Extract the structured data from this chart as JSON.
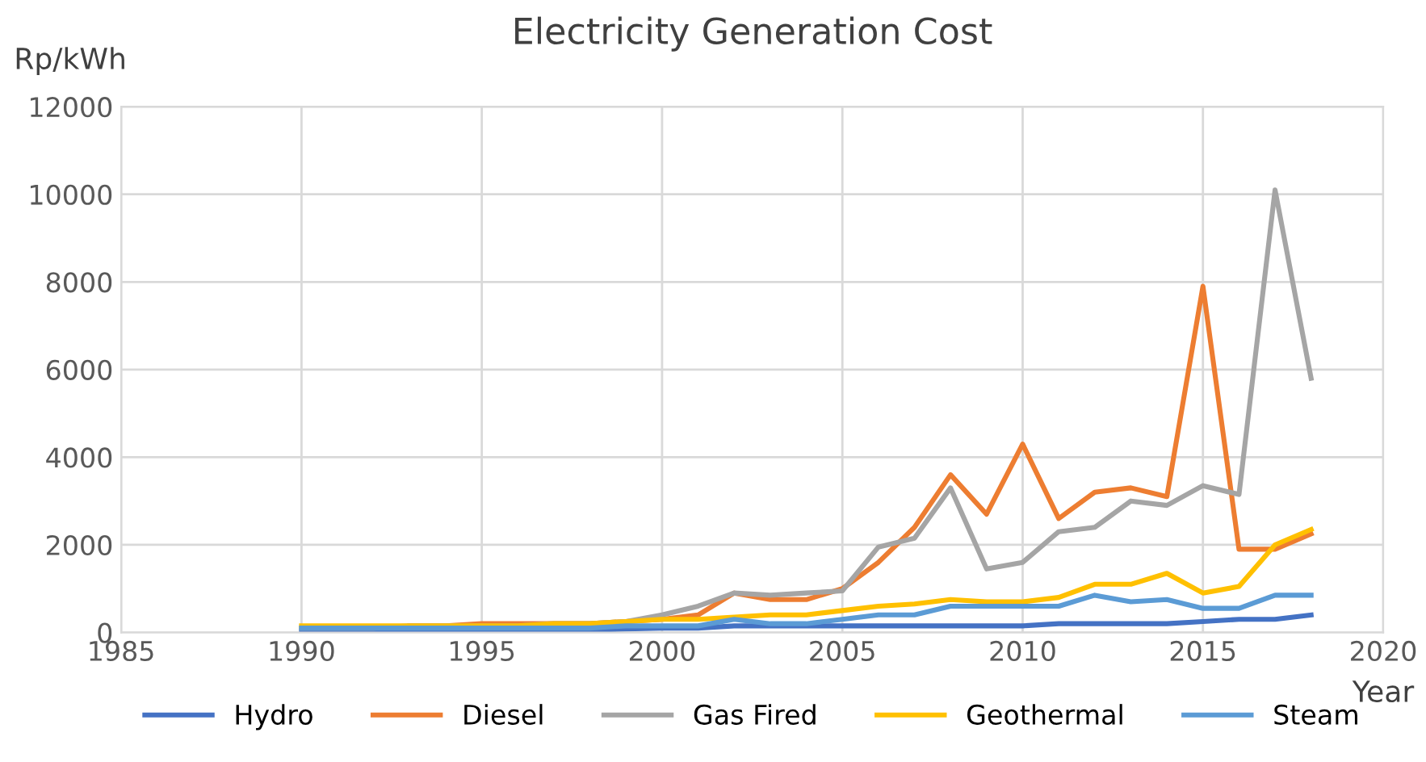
{
  "chart_data": {
    "type": "line",
    "title": "Electricity Generation Cost",
    "xlabel": "Year",
    "ylabel": "Rp/kWh",
    "x": [
      1990,
      1991,
      1992,
      1993,
      1994,
      1995,
      1996,
      1997,
      1998,
      1999,
      2000,
      2001,
      2002,
      2003,
      2004,
      2005,
      2006,
      2007,
      2008,
      2009,
      2010,
      2011,
      2012,
      2013,
      2014,
      2015,
      2016,
      2017,
      2018
    ],
    "series": [
      {
        "name": "Hydro",
        "color": "#4472c4",
        "values": [
          50,
          50,
          50,
          50,
          50,
          50,
          50,
          50,
          50,
          80,
          100,
          100,
          150,
          150,
          150,
          150,
          150,
          150,
          150,
          150,
          150,
          200,
          200,
          200,
          200,
          250,
          300,
          300,
          400
        ]
      },
      {
        "name": "Diesel",
        "color": "#ed7d31",
        "values": [
          null,
          null,
          null,
          150,
          150,
          200,
          200,
          200,
          200,
          250,
          300,
          400,
          900,
          750,
          750,
          1000,
          1600,
          2400,
          3600,
          2700,
          4300,
          2600,
          3200,
          3300,
          3100,
          7900,
          1900,
          1900,
          2250
        ]
      },
      {
        "name": "Gas Fired",
        "color": "#a5a5a5",
        "values": [
          100,
          100,
          100,
          150,
          150,
          150,
          150,
          200,
          200,
          250,
          400,
          600,
          900,
          850,
          900,
          950,
          1950,
          2150,
          3300,
          1450,
          1600,
          2300,
          2400,
          3000,
          2900,
          3350,
          3150,
          10100,
          5800
        ]
      },
      {
        "name": "Geothermal",
        "color": "#ffc000",
        "values": [
          150,
          150,
          150,
          150,
          150,
          150,
          150,
          200,
          200,
          250,
          300,
          300,
          350,
          400,
          400,
          500,
          600,
          650,
          750,
          700,
          700,
          800,
          1100,
          1100,
          1350,
          900,
          1050,
          2000,
          2350
        ]
      },
      {
        "name": "Steam",
        "color": "#5b9bd5",
        "values": [
          100,
          100,
          100,
          100,
          100,
          100,
          100,
          100,
          100,
          150,
          150,
          150,
          300,
          200,
          200,
          300,
          400,
          400,
          600,
          600,
          600,
          600,
          850,
          700,
          750,
          550,
          550,
          850,
          850
        ]
      }
    ],
    "xlim": [
      1985,
      2020
    ],
    "xticks": [
      1985,
      1990,
      1995,
      2000,
      2005,
      2010,
      2015,
      2020
    ],
    "ylim": [
      0,
      12000
    ],
    "yticks": [
      0,
      2000,
      4000,
      6000,
      8000,
      10000,
      12000
    ],
    "grid": true,
    "legend": "bottom",
    "marker": "none",
    "line_style": "solid"
  }
}
